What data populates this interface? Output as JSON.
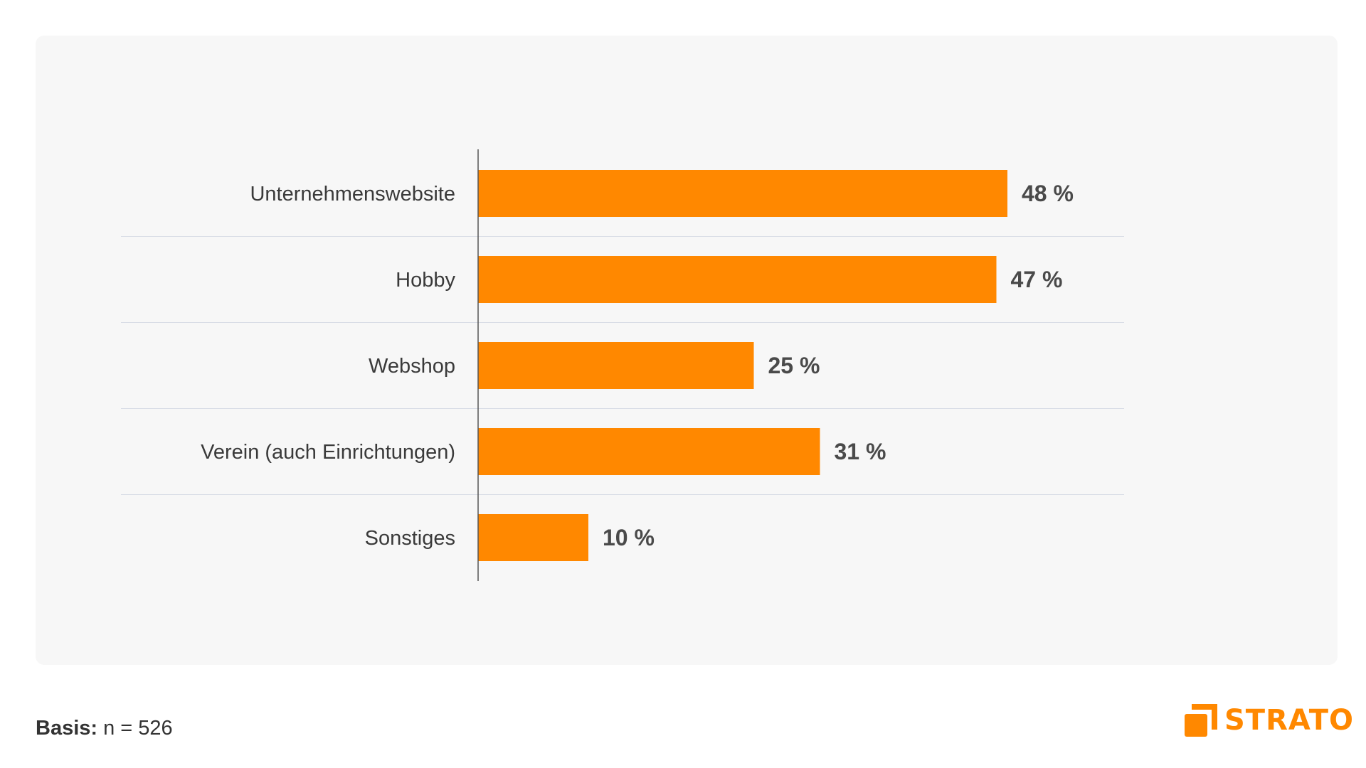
{
  "colors": {
    "bar": "#ff8800",
    "panel_bg": "#f7f7f7",
    "text": "#3a3a3a",
    "value_text": "#4a4a4a",
    "axis": "#555555",
    "grid": "#d9dde6",
    "brand": "#ff8800"
  },
  "chart_data": {
    "type": "bar",
    "orientation": "horizontal",
    "categories": [
      "Unternehmenswebsite",
      "Hobby",
      "Webshop",
      "Verein (auch Einrichtungen)",
      "Sonstiges"
    ],
    "values": [
      48,
      47,
      25,
      31,
      10
    ],
    "value_labels": [
      "48 %",
      "47 %",
      "25 %",
      "31 %",
      "10 %"
    ],
    "unit": "%",
    "xlim": [
      0,
      100
    ],
    "grid": true,
    "legend": "none"
  },
  "footer": {
    "basis_label": "Basis:",
    "basis_value": "n = 526"
  },
  "logo": {
    "icon": "strato-logo-icon",
    "text": "STRATO"
  }
}
